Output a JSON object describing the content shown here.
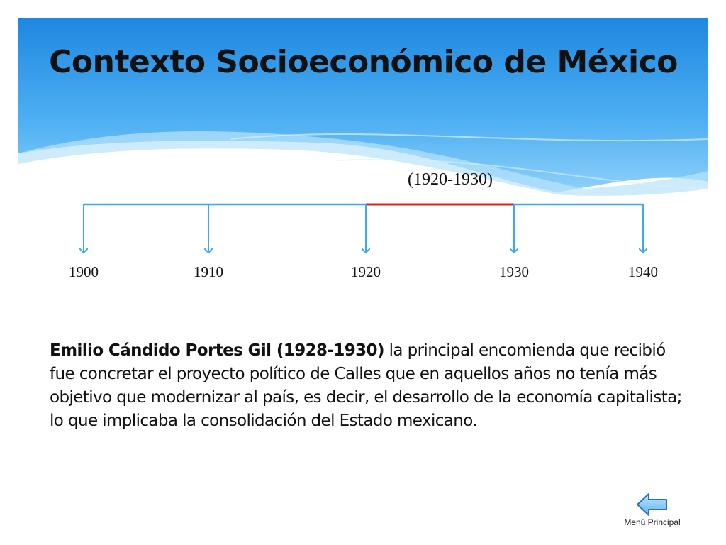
{
  "slide": {
    "title": "Contexto Socioeconómico de México",
    "range_label": "(1920-1930)",
    "colors": {
      "accent": "#3ea8ee",
      "highlight": "#e02020",
      "header_top": "#1e88e0",
      "header_light": "#8fd0fa"
    }
  },
  "chart_data": {
    "type": "timeline",
    "ticks": [
      1900,
      1910,
      1920,
      1930,
      1940
    ],
    "tick_labels": [
      "1900",
      "1910",
      "1920",
      "1930",
      "1940"
    ],
    "highlighted_range": [
      1920,
      1930
    ],
    "xlim": [
      1900,
      1940
    ]
  },
  "body": {
    "bold_text": "Emilio Cándido Portes Gil (1928-1930)",
    "text": " la principal encomienda que recibió fue concretar el proyecto político de Calles que en aquellos años no tenía más objetivo que modernizar al país, es decir, el desarrollo de la economía capitalista; lo que implicaba la consolidación del Estado mexicano."
  },
  "navigation": {
    "back_icon": "left-arrow-icon",
    "label": "Menú Principal"
  }
}
